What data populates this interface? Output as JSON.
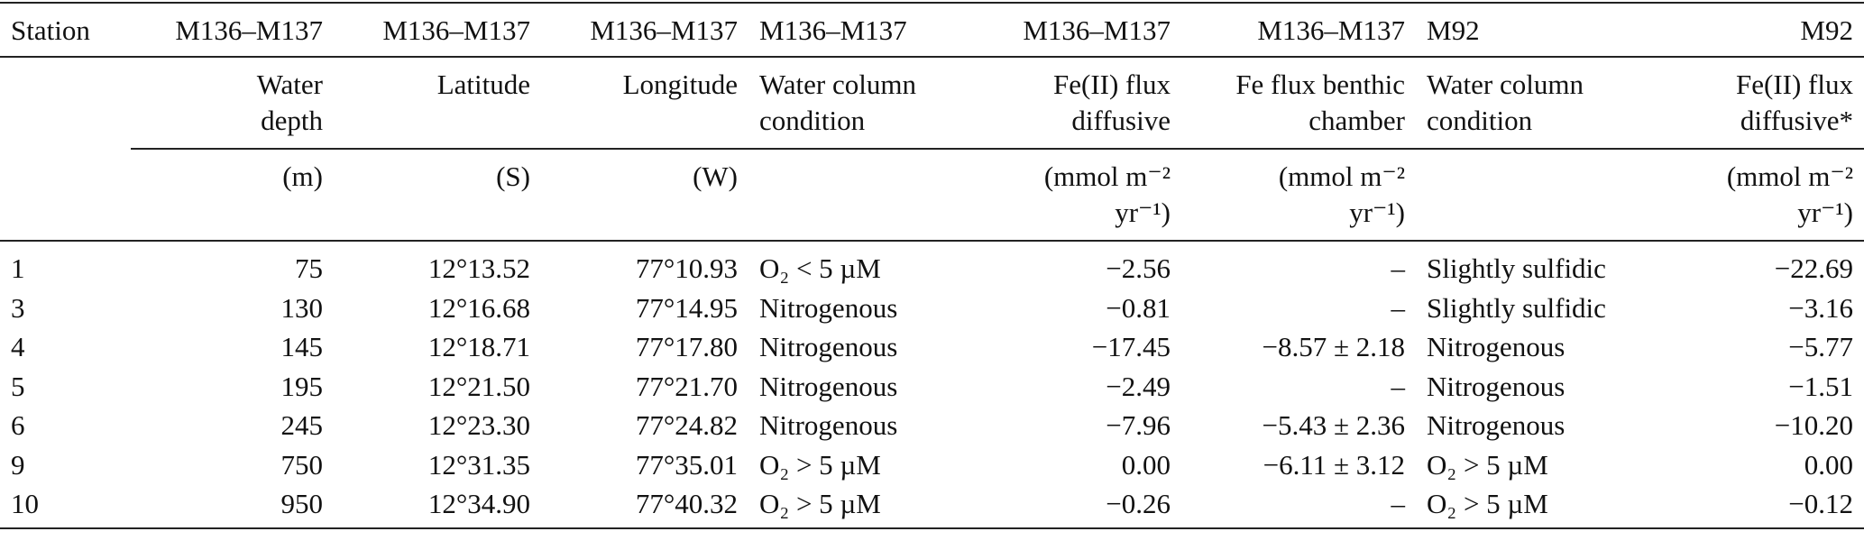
{
  "table": {
    "header_groups": [
      "Station",
      "M136–M137",
      "M136–M137",
      "M136–M137",
      "M136–M137",
      "M136–M137",
      "M136–M137",
      "M92",
      "M92"
    ],
    "header_names": [
      null,
      [
        "Water",
        "depth"
      ],
      [
        "Latitude"
      ],
      [
        "Longitude"
      ],
      [
        "Water column",
        "condition"
      ],
      [
        "Fe(II) flux",
        "diffusive"
      ],
      [
        "Fe flux benthic",
        "chamber"
      ],
      [
        "Water column",
        "condition"
      ],
      [
        "Fe(II) flux",
        "diffusive*"
      ]
    ],
    "header_units": [
      null,
      [
        "(m)"
      ],
      [
        "(S)"
      ],
      [
        "(W)"
      ],
      null,
      [
        "(mmol m⁻²",
        "yr⁻¹)"
      ],
      [
        "(mmol m⁻²",
        "yr⁻¹)"
      ],
      null,
      [
        "(mmol m⁻²",
        "yr⁻¹)"
      ]
    ],
    "rows": [
      [
        "1",
        "75",
        "12°13.52",
        "77°10.93",
        "O₂ < 5 µM",
        "−2.56",
        "–",
        "Slightly sulfidic",
        "−22.69"
      ],
      [
        "3",
        "130",
        "12°16.68",
        "77°14.95",
        "Nitrogenous",
        "−0.81",
        "–",
        "Slightly sulfidic",
        "−3.16"
      ],
      [
        "4",
        "145",
        "12°18.71",
        "77°17.80",
        "Nitrogenous",
        "−17.45",
        "−8.57 ± 2.18",
        "Nitrogenous",
        "−5.77"
      ],
      [
        "5",
        "195",
        "12°21.50",
        "77°21.70",
        "Nitrogenous",
        "−2.49",
        "–",
        "Nitrogenous",
        "−1.51"
      ],
      [
        "6",
        "245",
        "12°23.30",
        "77°24.82",
        "Nitrogenous",
        "−7.96",
        "−5.43 ± 2.36",
        "Nitrogenous",
        "−10.20"
      ],
      [
        "9",
        "750",
        "12°31.35",
        "77°35.01",
        "O₂ > 5 µM",
        "0.00",
        "−6.11 ± 3.12",
        "O₂ > 5 µM",
        "0.00"
      ],
      [
        "10",
        "950",
        "12°34.90",
        "77°40.32",
        "O₂ > 5 µM",
        "−0.26",
        "–",
        "O₂ > 5 µM",
        "−0.12"
      ]
    ]
  }
}
